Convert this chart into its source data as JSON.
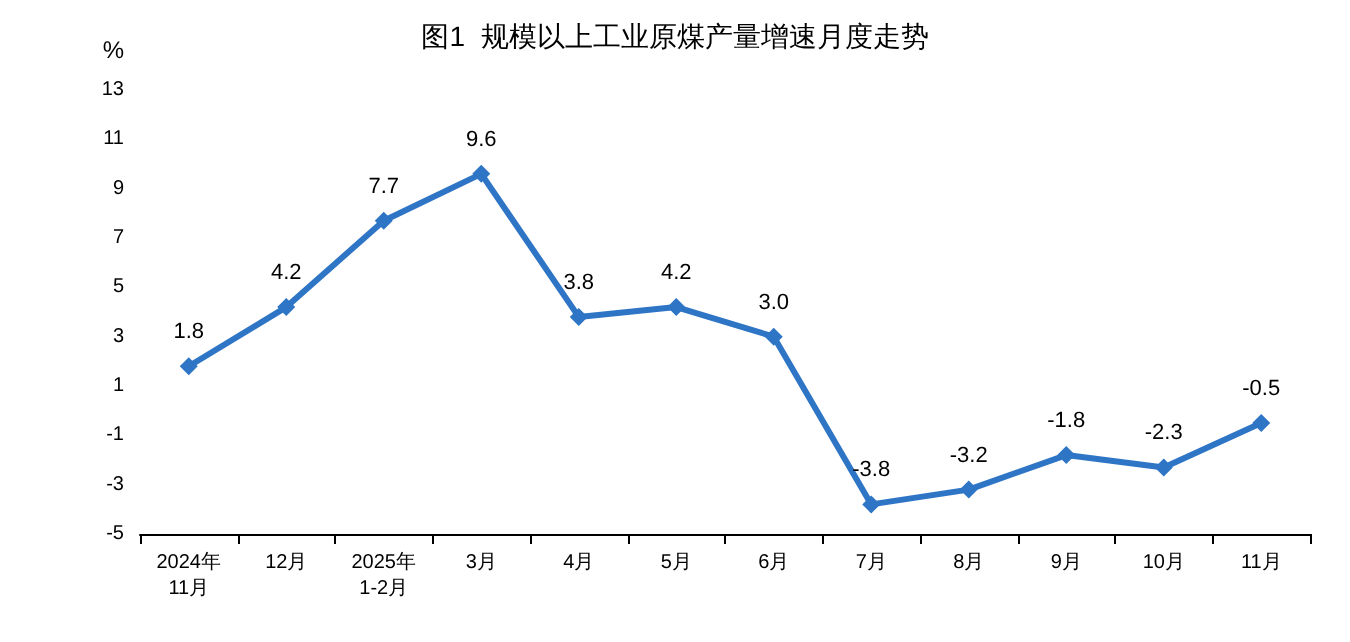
{
  "chart_data": {
    "type": "line",
    "title": "图1  规模以上工业原煤产量增速月度走势",
    "ylabel": "%",
    "categories": [
      "2024年\n11月",
      "12月",
      "2025年\n1-2月",
      "3月",
      "4月",
      "5月",
      "6月",
      "7月",
      "8月",
      "9月",
      "10月",
      "11月"
    ],
    "series": [
      {
        "color": "#2e75c6",
        "values": [
          1.8,
          4.2,
          7.7,
          9.6,
          3.8,
          4.2,
          3.0,
          -3.8,
          -3.2,
          -1.8,
          -2.3,
          -0.5
        ],
        "value_labels": [
          "1.8",
          "4.2",
          "7.7",
          "9.6",
          "3.8",
          "4.2",
          "3.0",
          "-3.8",
          "-3.2",
          "-1.8",
          "-2.3",
          "-0.5"
        ]
      }
    ],
    "ylim": [
      -5,
      13
    ],
    "yticks": [
      -5,
      -3,
      -1,
      1,
      3,
      5,
      7,
      9,
      11,
      13
    ],
    "grid": false,
    "marker": "diamond",
    "line_style": "solid"
  }
}
